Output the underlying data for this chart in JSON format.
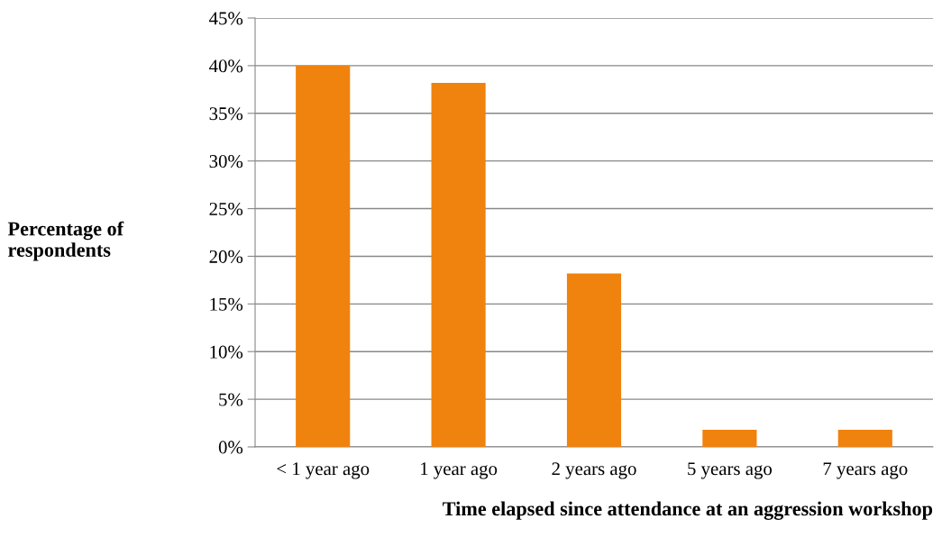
{
  "chart_data": {
    "type": "bar",
    "xlabel": "Time elapsed since attendance at an aggression workshop",
    "ylabel": "Percentage of\nrespondents",
    "categories": [
      "< 1 year ago",
      "1 year ago",
      "2 years ago",
      "5 years ago",
      "7 years ago"
    ],
    "values": [
      40,
      38.2,
      18.2,
      1.8,
      1.8
    ],
    "color": "#f0820e",
    "ylim": [
      0,
      45
    ],
    "yticks": [
      {
        "value": 0,
        "label": "0%"
      },
      {
        "value": 5,
        "label": "5%"
      },
      {
        "value": 10,
        "label": "10%"
      },
      {
        "value": 15,
        "label": "15%"
      },
      {
        "value": 20,
        "label": "20%"
      },
      {
        "value": 25,
        "label": "25%"
      },
      {
        "value": 30,
        "label": "30%"
      },
      {
        "value": 35,
        "label": "35%"
      },
      {
        "value": 40,
        "label": "40%"
      },
      {
        "value": 45,
        "label": "45%"
      }
    ],
    "grid": "y",
    "legend": false
  }
}
